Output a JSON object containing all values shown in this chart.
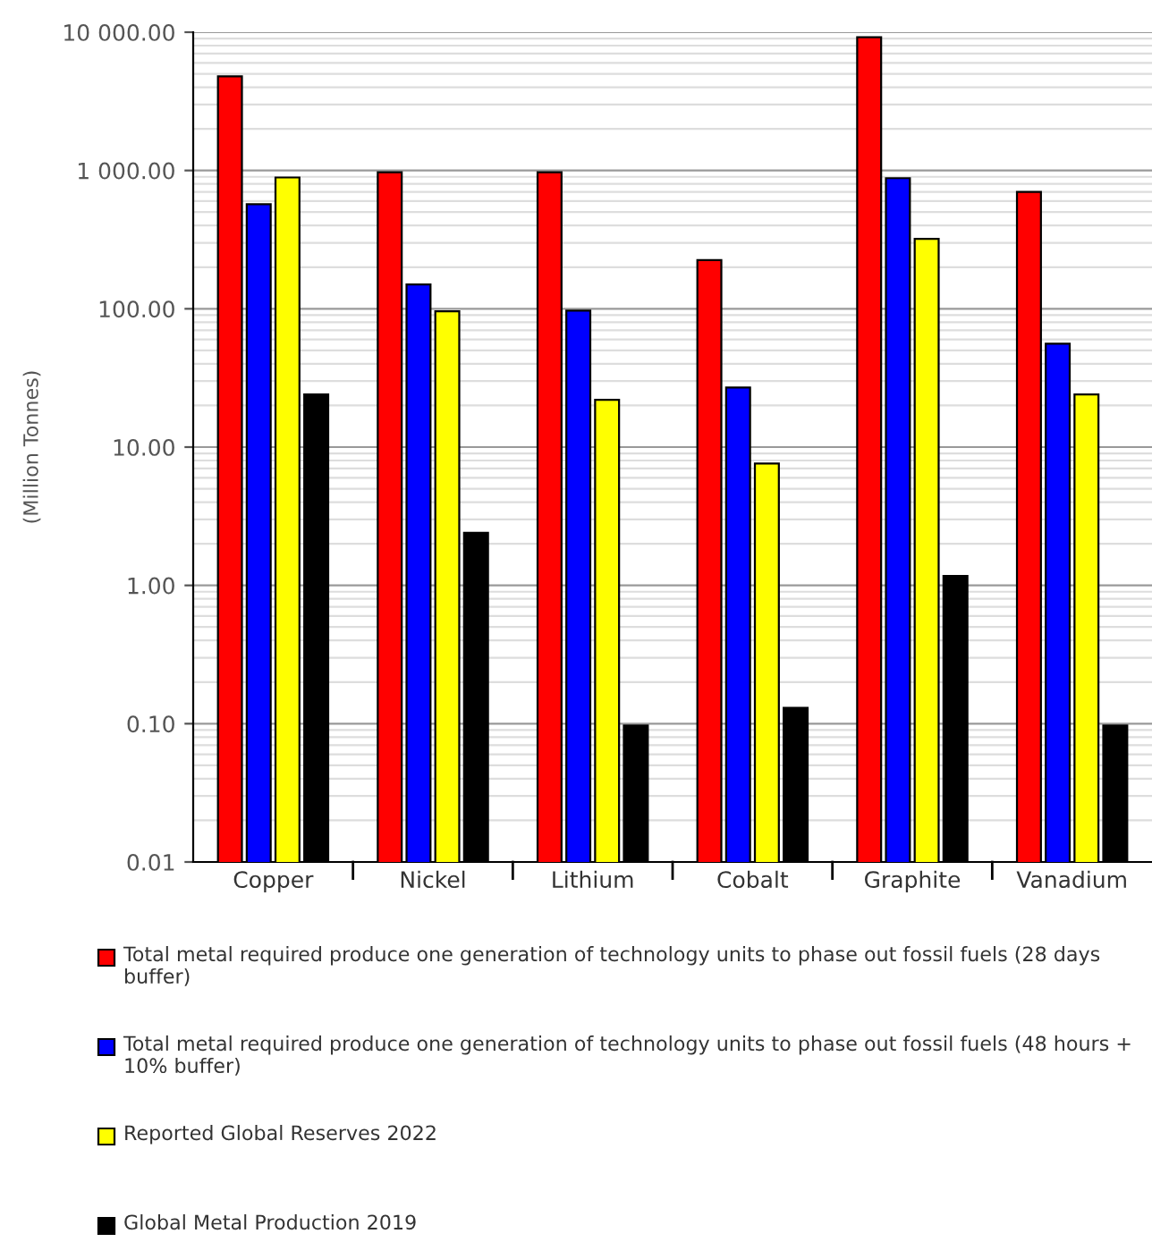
{
  "chart_data": {
    "type": "bar",
    "ylabel": "(Million Tonnes)",
    "categories": [
      "Copper",
      "Nickel",
      "Lithium",
      "Cobalt",
      "Graphite",
      "Vanadium"
    ],
    "series": [
      {
        "name": "Total metal required produce one generation of technology units to phase out fossil fuels (28 days buffer)",
        "color": "#ff0000",
        "values": [
          4800,
          970,
          970,
          225,
          9200,
          700
        ]
      },
      {
        "name": "Total metal required produce one generation of technology units to phase out fossil fuels (48 hours + 10% buffer)",
        "color": "#0000ff",
        "values": [
          570,
          150,
          97,
          27,
          880,
          56
        ]
      },
      {
        "name": "Reported Global Reserves 2022",
        "color": "#ffff00",
        "values": [
          890,
          96,
          22,
          7.6,
          320,
          24
        ]
      },
      {
        "name": "Global Metal Production 2019",
        "color": "#000000",
        "values": [
          24,
          2.4,
          0.097,
          0.13,
          1.17,
          0.097
        ]
      }
    ],
    "log": true,
    "ylim": [
      0.01,
      10000
    ],
    "yticks": [
      {
        "value": 0.01,
        "label": "0.01"
      },
      {
        "value": 0.1,
        "label": "0.10"
      },
      {
        "value": 1,
        "label": "1.00"
      },
      {
        "value": 10,
        "label": "10.00"
      },
      {
        "value": 100,
        "label": "100.00"
      },
      {
        "value": 1000,
        "label": "1 000.00"
      },
      {
        "value": 10000,
        "label": "10 000.00"
      }
    ],
    "grid": "y",
    "legend": "bottom"
  }
}
